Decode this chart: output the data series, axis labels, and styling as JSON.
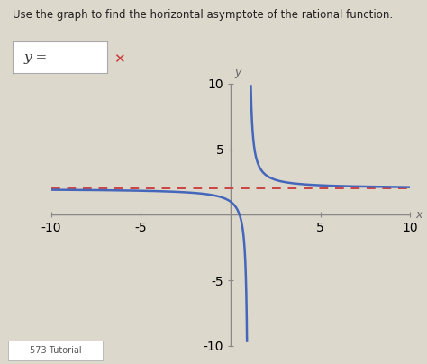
{
  "title": "Use the graph to find the horizontal asymptote of the rational function.",
  "xlabel": "x",
  "ylabel": "y",
  "xlim": [
    -10,
    10
  ],
  "ylim": [
    -10,
    10
  ],
  "xticks": [
    -10,
    -5,
    5,
    10
  ],
  "yticks": [
    -10,
    -5,
    5,
    10
  ],
  "ytick_labels": [
    "-10",
    "-5",
    "5",
    "10"
  ],
  "xtick_labels": [
    "-10",
    "-5",
    "5",
    "10"
  ],
  "vertical_asymptote": 1,
  "horizontal_asymptote": 2,
  "curve_color": "#4466bb",
  "asymptote_color": "#cc4444",
  "background_color": "#ddd8cc",
  "curve_linewidth": 1.8,
  "asymptote_linewidth": 1.4,
  "label_eq": "y =",
  "x_marker_color": "#cc3333",
  "tutorial_text": "573 Tutorial",
  "axis_color": "#888888",
  "tick_label_color": "#666666"
}
